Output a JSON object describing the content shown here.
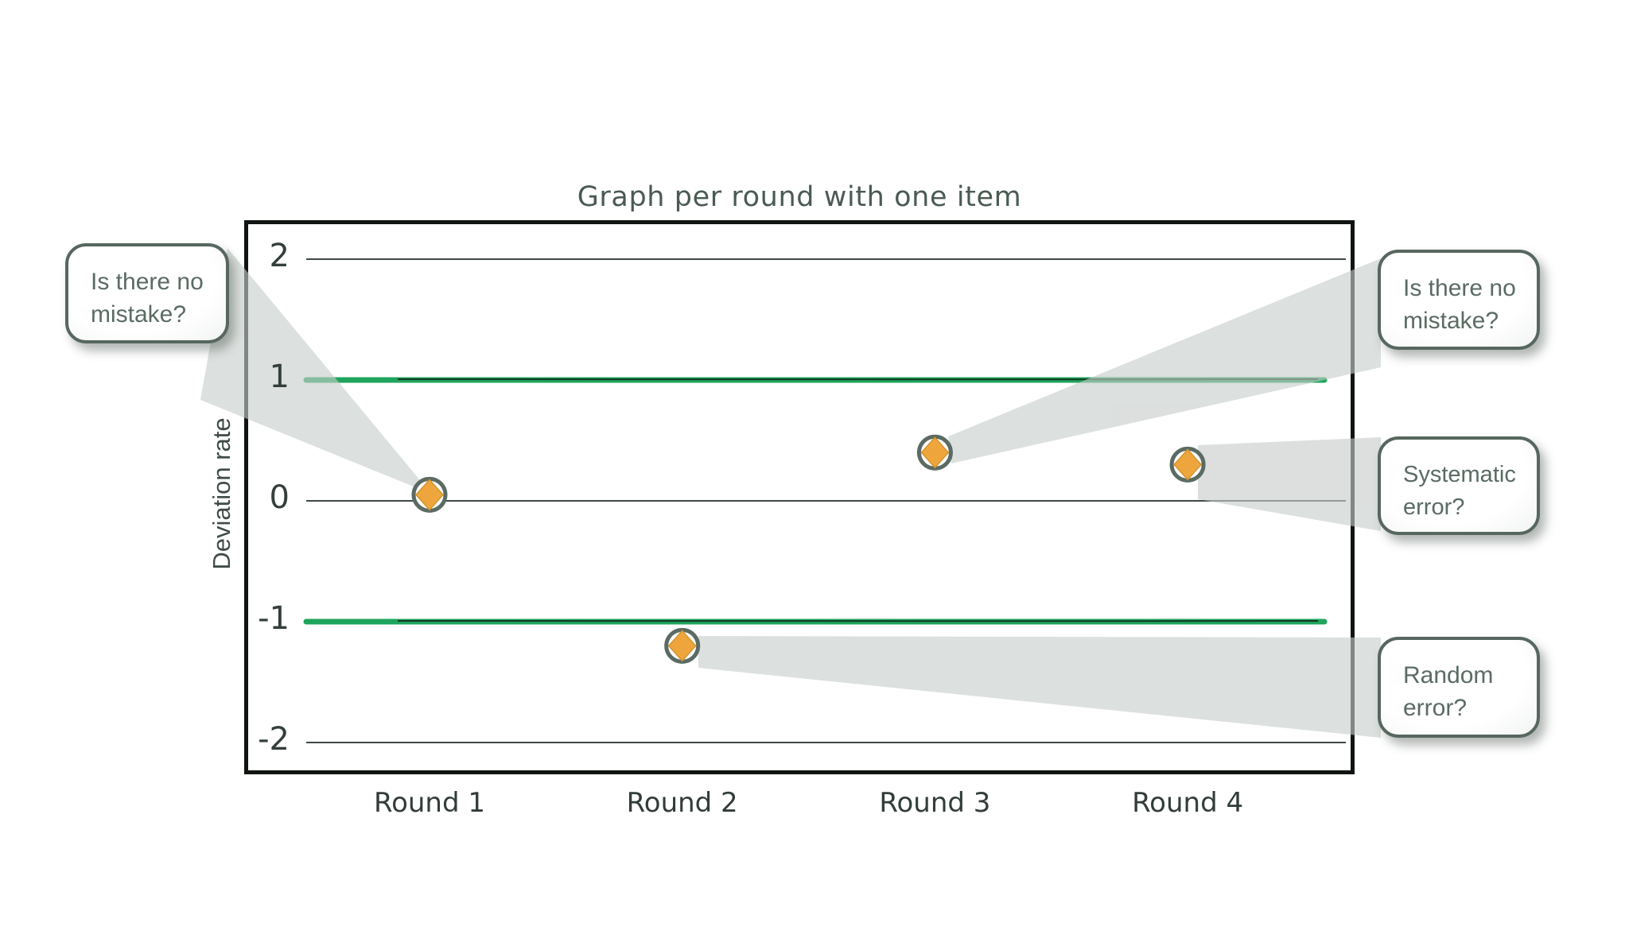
{
  "page": {
    "background": "#ffffff"
  },
  "chart_data": {
    "type": "scatter",
    "title": "Graph per round with one item",
    "xlabel": "",
    "ylabel": "Deviation rate",
    "categories": [
      "Round 1",
      "Round 2",
      "Round 3",
      "Round 4"
    ],
    "values": [
      0.05,
      -1.2,
      0.4,
      0.3
    ],
    "yticks": [
      2,
      1,
      0,
      -1,
      -2
    ],
    "ylim": [
      -2.3,
      2.3
    ],
    "control_limits": [
      1,
      -1
    ],
    "grid": "horizontal-only",
    "legend": "none",
    "annotations": [
      {
        "text": "Is there no mistake?",
        "target": "Round 1",
        "side": "left"
      },
      {
        "text": "Is there no mistake?",
        "target": "Round 3",
        "side": "right"
      },
      {
        "text": "Systematic error?",
        "target": "Round 4",
        "side": "right"
      },
      {
        "text": "Random error?",
        "target": "Round 2",
        "side": "right"
      }
    ],
    "colors": {
      "limit_line_green": "#1ea45c",
      "limit_line_core": "#143823",
      "gridline": "#3e4a44",
      "frame": "#101511",
      "marker_fill": "#eea63c",
      "marker_edge": "#d3942e",
      "marker_ring": "#5b6b63",
      "beam": "#c7cdca",
      "callout_border": "#57675f",
      "callout_text": "#5a6b63",
      "title_text": "#4b5a53"
    }
  }
}
